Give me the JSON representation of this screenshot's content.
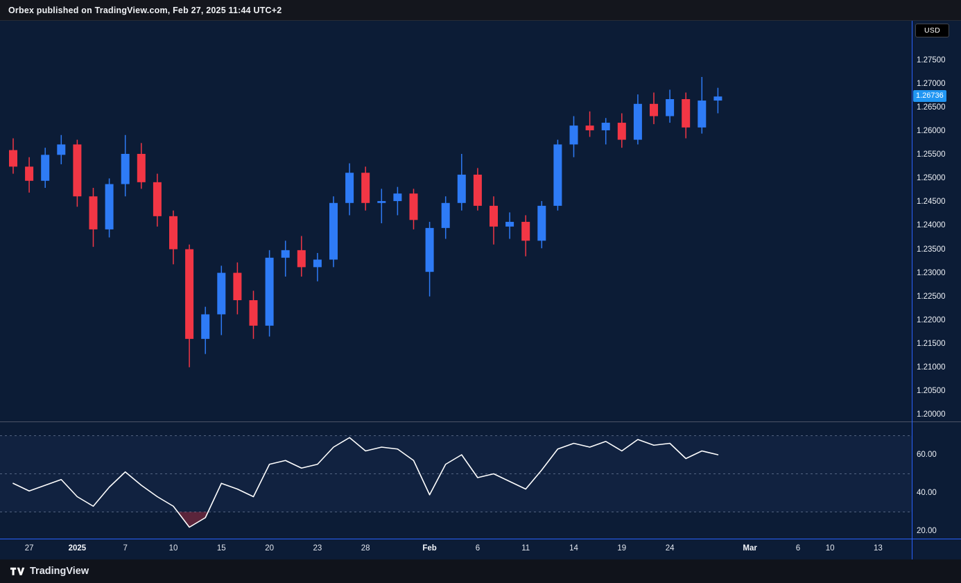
{
  "header": {
    "title": "Orbex published on TradingView.com, Feb 27, 2025 11:44 UTC+2"
  },
  "chart": {
    "currency_badge": "USD",
    "last_price": "1.26736"
  },
  "price_axis": {
    "labels": [
      "1.27500",
      "1.27000",
      "1.26500",
      "1.26000",
      "1.25500",
      "1.25000",
      "1.24500",
      "1.24000",
      "1.23500",
      "1.23000",
      "1.22500",
      "1.22000",
      "1.21500",
      "1.21000",
      "1.20500",
      "1.20000"
    ]
  },
  "rsi_axis": {
    "labels": [
      {
        "text": "60.00",
        "value": 60
      },
      {
        "text": "40.00",
        "value": 40
      },
      {
        "text": "20.00",
        "value": 20
      }
    ]
  },
  "time_axis": {
    "ticks": [
      {
        "label": "27",
        "index": 1,
        "major": false
      },
      {
        "label": "2025",
        "index": 4,
        "major": true
      },
      {
        "label": "7",
        "index": 7,
        "major": false
      },
      {
        "label": "10",
        "index": 10,
        "major": false
      },
      {
        "label": "15",
        "index": 13,
        "major": false
      },
      {
        "label": "20",
        "index": 16,
        "major": false
      },
      {
        "label": "23",
        "index": 19,
        "major": false
      },
      {
        "label": "28",
        "index": 22,
        "major": false
      },
      {
        "label": "Feb",
        "index": 26,
        "major": true
      },
      {
        "label": "6",
        "index": 29,
        "major": false
      },
      {
        "label": "11",
        "index": 32,
        "major": false
      },
      {
        "label": "14",
        "index": 35,
        "major": false
      },
      {
        "label": "19",
        "index": 38,
        "major": false
      },
      {
        "label": "24",
        "index": 41,
        "major": false
      },
      {
        "label": "Mar",
        "index": 46,
        "major": true
      },
      {
        "label": "6",
        "index": 49,
        "major": false
      },
      {
        "label": "10",
        "index": 51,
        "major": false
      },
      {
        "label": "13",
        "index": 54,
        "major": false
      }
    ]
  },
  "footer": {
    "brand": "TradingView"
  },
  "colors": {
    "up_candle": "#2e7bf6",
    "down_candle": "#f23645",
    "rsi_line": "#ffffff",
    "badge_bg": "#2196f3",
    "axis_accent": "#2962ff",
    "pane_separator": "#4d5468",
    "guide_dash": "rgba(150,165,198,0.5)",
    "oversold_fill": "rgba(242,54,69,0.35)",
    "rsi_band_fill": "rgba(126,163,255,0.05)"
  },
  "chart_data": [
    {
      "type": "candlestick",
      "name": "Price (USD)",
      "last_price": 1.26736,
      "ylim": [
        1.1985,
        1.2834
      ],
      "x": [
        "Dec 26",
        "Dec 27",
        "Dec 30",
        "Dec 31",
        "Jan 2",
        "Jan 3",
        "Jan 6",
        "Jan 7",
        "Jan 8",
        "Jan 9",
        "Jan 10",
        "Jan 13",
        "Jan 14",
        "Jan 15",
        "Jan 16",
        "Jan 17",
        "Jan 20",
        "Jan 21",
        "Jan 22",
        "Jan 23",
        "Jan 24",
        "Jan 27",
        "Jan 28",
        "Jan 29",
        "Jan 30",
        "Jan 31",
        "Feb 3",
        "Feb 4",
        "Feb 5",
        "Feb 6",
        "Feb 7",
        "Feb 10",
        "Feb 11",
        "Feb 12",
        "Feb 13",
        "Feb 14",
        "Feb 17",
        "Feb 18",
        "Feb 19",
        "Feb 20",
        "Feb 21",
        "Feb 24",
        "Feb 25",
        "Feb 26",
        "Feb 27"
      ],
      "ohlc": [
        [
          1.256,
          1.2585,
          1.251,
          1.2525
        ],
        [
          1.2525,
          1.2545,
          1.247,
          1.2495
        ],
        [
          1.2495,
          1.2565,
          1.248,
          1.255
        ],
        [
          1.255,
          1.2592,
          1.253,
          1.2572
        ],
        [
          1.2572,
          1.2582,
          1.244,
          1.2462
        ],
        [
          1.2462,
          1.248,
          1.2355,
          1.2392
        ],
        [
          1.2392,
          1.25,
          1.2375,
          1.2488
        ],
        [
          1.2488,
          1.2592,
          1.2462,
          1.2552
        ],
        [
          1.2552,
          1.2575,
          1.2478,
          1.2492
        ],
        [
          1.2492,
          1.251,
          1.2398,
          1.242
        ],
        [
          1.242,
          1.2432,
          1.2318,
          1.235
        ],
        [
          1.235,
          1.236,
          1.21,
          1.216
        ],
        [
          1.216,
          1.2228,
          1.2128,
          1.2212
        ],
        [
          1.2212,
          1.2315,
          1.2168,
          1.23
        ],
        [
          1.23,
          1.2322,
          1.2212,
          1.2242
        ],
        [
          1.2242,
          1.2262,
          1.216,
          1.2188
        ],
        [
          1.2188,
          1.2348,
          1.2165,
          1.2332
        ],
        [
          1.2332,
          1.2368,
          1.2292,
          1.2348
        ],
        [
          1.2348,
          1.2378,
          1.2292,
          1.2312
        ],
        [
          1.2312,
          1.2342,
          1.2282,
          1.2328
        ],
        [
          1.2328,
          1.2462,
          1.2312,
          1.2448
        ],
        [
          1.2448,
          1.2532,
          1.2422,
          1.2512
        ],
        [
          1.2512,
          1.2525,
          1.2432,
          1.2448
        ],
        [
          1.2448,
          1.2478,
          1.2405,
          1.2452
        ],
        [
          1.2452,
          1.2482,
          1.2422,
          1.2468
        ],
        [
          1.2468,
          1.2478,
          1.2392,
          1.2412
        ],
        [
          1.2302,
          1.2408,
          1.225,
          1.2395
        ],
        [
          1.2395,
          1.2462,
          1.2372,
          1.2448
        ],
        [
          1.2448,
          1.2552,
          1.2432,
          1.2508
        ],
        [
          1.2508,
          1.2522,
          1.2432,
          1.2442
        ],
        [
          1.2442,
          1.2462,
          1.236,
          1.2398
        ],
        [
          1.2398,
          1.2428,
          1.2372,
          1.2408
        ],
        [
          1.2408,
          1.2422,
          1.2335,
          1.2368
        ],
        [
          1.2368,
          1.2452,
          1.2352,
          1.2442
        ],
        [
          1.2442,
          1.2582,
          1.2432,
          1.2572
        ],
        [
          1.2572,
          1.2632,
          1.2545,
          1.2612
        ],
        [
          1.2612,
          1.2642,
          1.2588,
          1.2602
        ],
        [
          1.2602,
          1.2628,
          1.2572,
          1.2618
        ],
        [
          1.2618,
          1.2638,
          1.2565,
          1.2582
        ],
        [
          1.2582,
          1.2678,
          1.2572,
          1.2658
        ],
        [
          1.2658,
          1.2682,
          1.2615,
          1.2632
        ],
        [
          1.2632,
          1.2688,
          1.2618,
          1.2668
        ],
        [
          1.2668,
          1.2682,
          1.2585,
          1.2608
        ],
        [
          1.2608,
          1.2715,
          1.2595,
          1.2665
        ],
        [
          1.2665,
          1.2692,
          1.2638,
          1.26736
        ]
      ]
    },
    {
      "type": "line",
      "name": "RSI",
      "ylim": [
        16,
        76
      ],
      "guides": [
        70,
        50,
        30
      ],
      "tick_labels": [
        60,
        40,
        20
      ],
      "oversold_level": 30,
      "values": [
        45,
        41,
        44,
        47,
        38,
        33,
        43,
        51,
        44,
        38,
        33,
        22,
        27,
        45,
        42,
        38,
        55,
        57,
        53,
        55,
        64,
        69,
        62,
        64,
        63,
        57,
        39,
        55,
        60,
        48,
        50,
        46,
        42,
        52,
        63,
        66,
        64,
        67,
        62,
        68,
        65,
        66,
        58,
        62,
        60
      ]
    }
  ]
}
